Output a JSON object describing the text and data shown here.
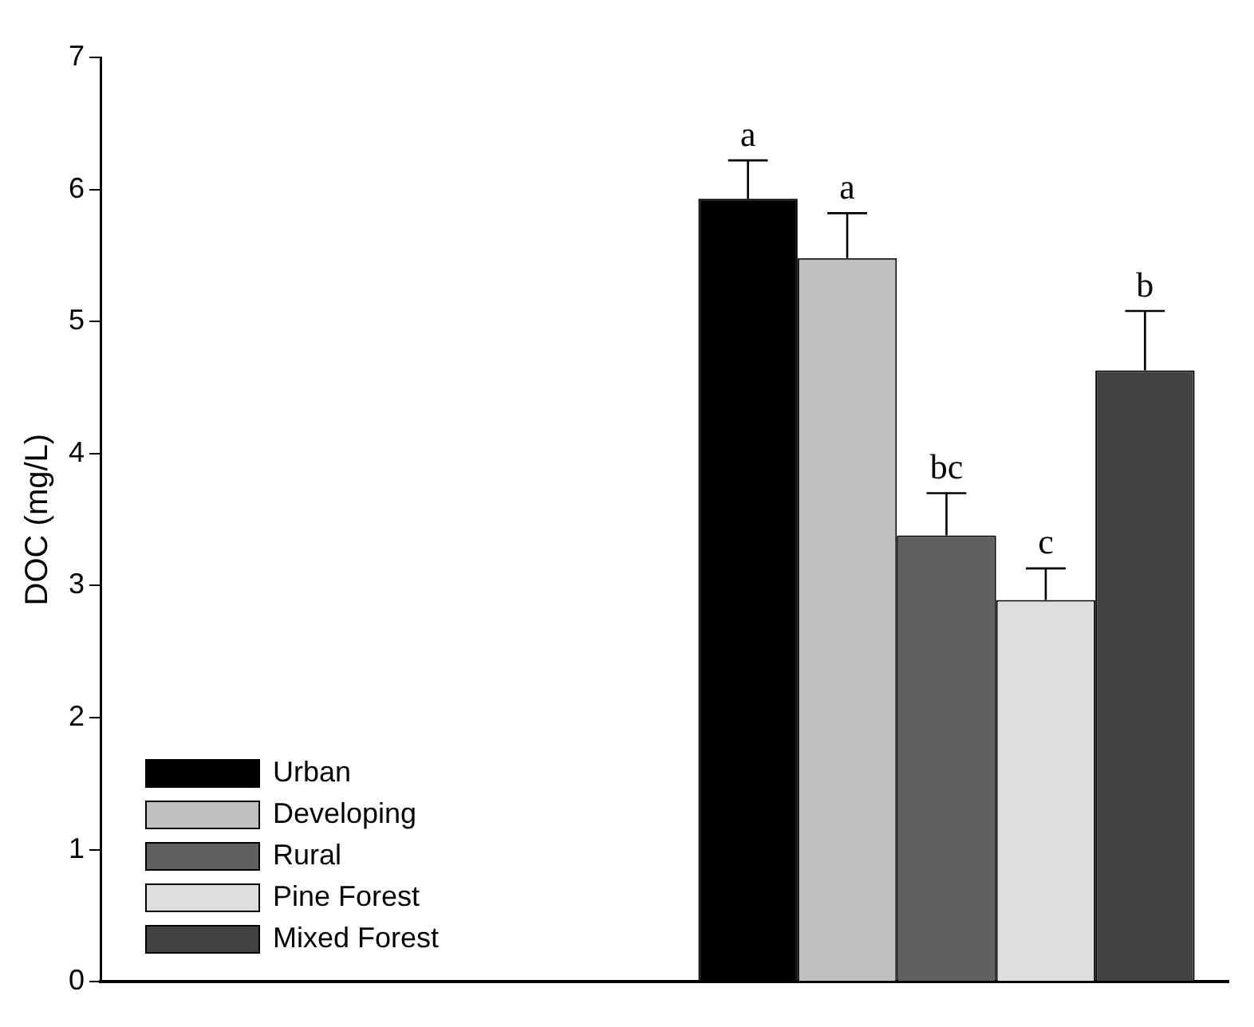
{
  "chart_data": {
    "type": "bar",
    "ylabel": "DOC (mg/L)",
    "categories": [
      null,
      null
    ],
    "series": [
      {
        "name": "Urban",
        "color": "#000000",
        "values": [
          null,
          5.93
        ],
        "errors": [
          null,
          [
            5.93,
            6.22
          ]
        ]
      },
      {
        "name": "Developing",
        "color": "#c0c0c0",
        "values": [
          null,
          5.48
        ],
        "errors": [
          null,
          [
            5.48,
            5.82
          ]
        ]
      },
      {
        "name": "Rural",
        "color": "#606060",
        "values": [
          null,
          3.38
        ],
        "errors": [
          null,
          [
            3.38,
            3.7
          ]
        ]
      },
      {
        "name": "Pine Forest",
        "color": "#dedede",
        "values": [
          null,
          2.89
        ],
        "errors": [
          null,
          [
            2.89,
            3.13
          ]
        ]
      },
      {
        "name": "Mixed Forest",
        "color": "#424242",
        "values": [
          null,
          4.63
        ],
        "errors": [
          null,
          [
            4.63,
            5.08
          ]
        ]
      }
    ],
    "annotations": [
      {
        "text": "a",
        "y": 6.22
      },
      {
        "text": "a",
        "y": 5.82
      },
      {
        "text": "bc",
        "y": 3.7
      },
      {
        "text": "c",
        "y": 3.13
      },
      {
        "text": "b",
        "y": 5.08
      }
    ],
    "ylim": [
      0,
      7
    ],
    "yticks": [
      0,
      1,
      2,
      3,
      4,
      5,
      6,
      7
    ],
    "grid": false,
    "legend": "bottom left"
  }
}
